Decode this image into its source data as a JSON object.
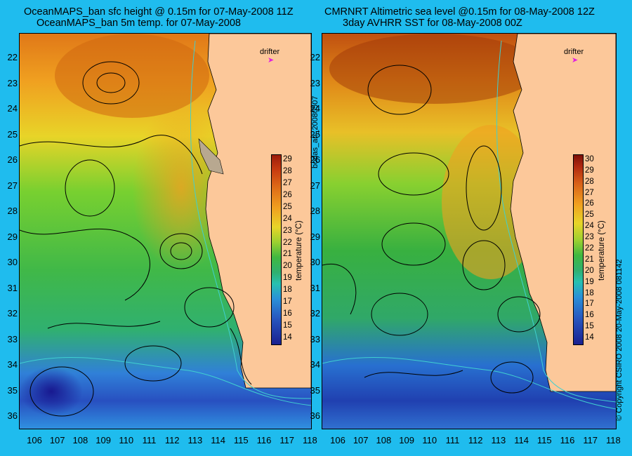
{
  "left_panel": {
    "title_line1": "OceanMAPS_ban sfc height @ 0.15m for 07-May-2008 11Z",
    "title_line2": "OceanMAPS_ban 5m temp. for 07-May-2008",
    "drifter_label": "drifter",
    "colorbar_title": "temperature (°C)",
    "colorbar_ticks": [
      "14",
      "15",
      "16",
      "17",
      "18",
      "19",
      "20",
      "21",
      "22",
      "23",
      "24",
      "25",
      "26",
      "27",
      "28",
      "29"
    ]
  },
  "right_panel": {
    "title_line1": "CMRNRT Altimetric sea level  @0.15m  for 08-May-2008 12Z",
    "title_line2": "3day AVHRR SST for 08-May-2008 00Z",
    "drifter_label": "drifter",
    "colorbar_title": "temperature (°C)",
    "colorbar_ticks": [
      "14",
      "15",
      "16",
      "17",
      "18",
      "19",
      "20",
      "21",
      "22",
      "23",
      "24",
      "25",
      "26",
      "27",
      "28",
      "29",
      "30"
    ]
  },
  "center_vertical_text": "bodas_an_20080507",
  "right_vertical_text": "© Copyright CSIRO 2008    20-May-2008 081142",
  "lat_labels": [
    "22",
    "23",
    "24",
    "25",
    "26",
    "27",
    "28",
    "29",
    "30",
    "31",
    "32",
    "33",
    "34",
    "35",
    "36"
  ],
  "lon_labels": [
    "106",
    "107",
    "108",
    "109",
    "110",
    "111",
    "112",
    "113",
    "114",
    "115",
    "116",
    "117",
    "118"
  ],
  "colors": {
    "background": "#1fbcee",
    "land": "#fcc89a",
    "drifter": "#e020e0",
    "contour": "#000000",
    "isobath": "#40d0d0"
  }
}
